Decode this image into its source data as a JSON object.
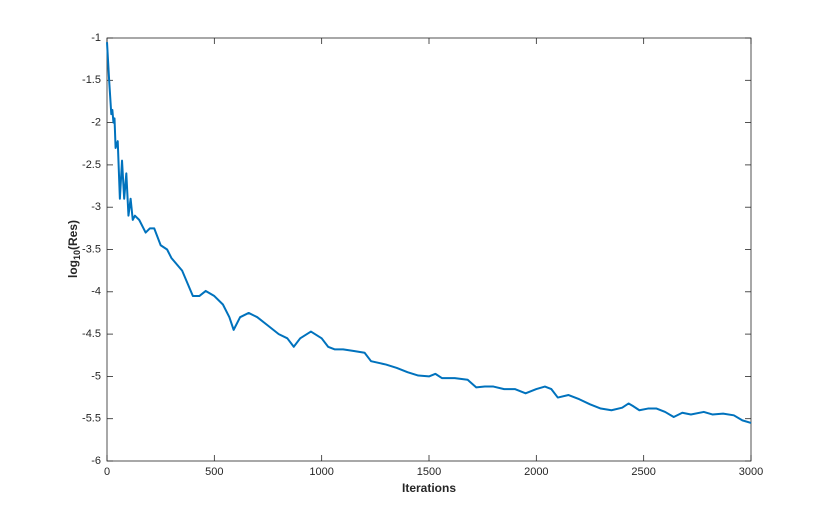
{
  "chart_data": {
    "type": "line",
    "xlabel": "Iterations",
    "ylabel": [
      "log",
      "10",
      "(Res)"
    ],
    "color": "#0072bd",
    "x": [
      0,
      10,
      20,
      25,
      30,
      35,
      40,
      50,
      60,
      70,
      80,
      90,
      100,
      110,
      120,
      130,
      150,
      180,
      200,
      220,
      250,
      280,
      300,
      350,
      400,
      430,
      460,
      500,
      540,
      570,
      590,
      620,
      660,
      700,
      750,
      800,
      840,
      870,
      900,
      950,
      1000,
      1030,
      1060,
      1100,
      1150,
      1200,
      1230,
      1300,
      1350,
      1400,
      1450,
      1500,
      1530,
      1560,
      1620,
      1680,
      1720,
      1760,
      1800,
      1850,
      1900,
      1950,
      2000,
      2040,
      2070,
      2100,
      2150,
      2200,
      2250,
      2300,
      2350,
      2400,
      2430,
      2450,
      2480,
      2520,
      2560,
      2600,
      2640,
      2680,
      2720,
      2780,
      2820,
      2870,
      2920,
      2960,
      3000
    ],
    "values": [
      -1.05,
      -1.5,
      -1.9,
      -1.85,
      -2.0,
      -1.95,
      -2.3,
      -2.22,
      -2.9,
      -2.45,
      -2.9,
      -2.6,
      -3.1,
      -2.9,
      -3.15,
      -3.1,
      -3.15,
      -3.3,
      -3.25,
      -3.25,
      -3.45,
      -3.5,
      -3.6,
      -3.75,
      -4.05,
      -4.05,
      -3.99,
      -4.05,
      -4.15,
      -4.3,
      -4.45,
      -4.3,
      -4.25,
      -4.3,
      -4.4,
      -4.5,
      -4.55,
      -4.65,
      -4.55,
      -4.47,
      -4.55,
      -4.65,
      -4.68,
      -4.68,
      -4.7,
      -4.72,
      -4.82,
      -4.86,
      -4.9,
      -4.95,
      -4.99,
      -5.0,
      -4.97,
      -5.02,
      -5.02,
      -5.04,
      -5.13,
      -5.12,
      -5.12,
      -5.15,
      -5.15,
      -5.2,
      -5.15,
      -5.12,
      -5.15,
      -5.25,
      -5.22,
      -5.27,
      -5.33,
      -5.38,
      -5.4,
      -5.37,
      -5.32,
      -5.35,
      -5.4,
      -5.38,
      -5.38,
      -5.42,
      -5.48,
      -5.43,
      -5.45,
      -5.42,
      -5.45,
      -5.44,
      -5.46,
      -5.52,
      -5.55
    ],
    "xlim": [
      0,
      3000
    ],
    "xticks": [
      0,
      500,
      1000,
      1500,
      2000,
      2500,
      3000
    ],
    "ylim": [
      -6,
      -1
    ],
    "yticks": [
      -6,
      -5.5,
      -5,
      -4.5,
      -4,
      -3.5,
      -3,
      -2.5,
      -2,
      -1.5,
      -1
    ]
  }
}
